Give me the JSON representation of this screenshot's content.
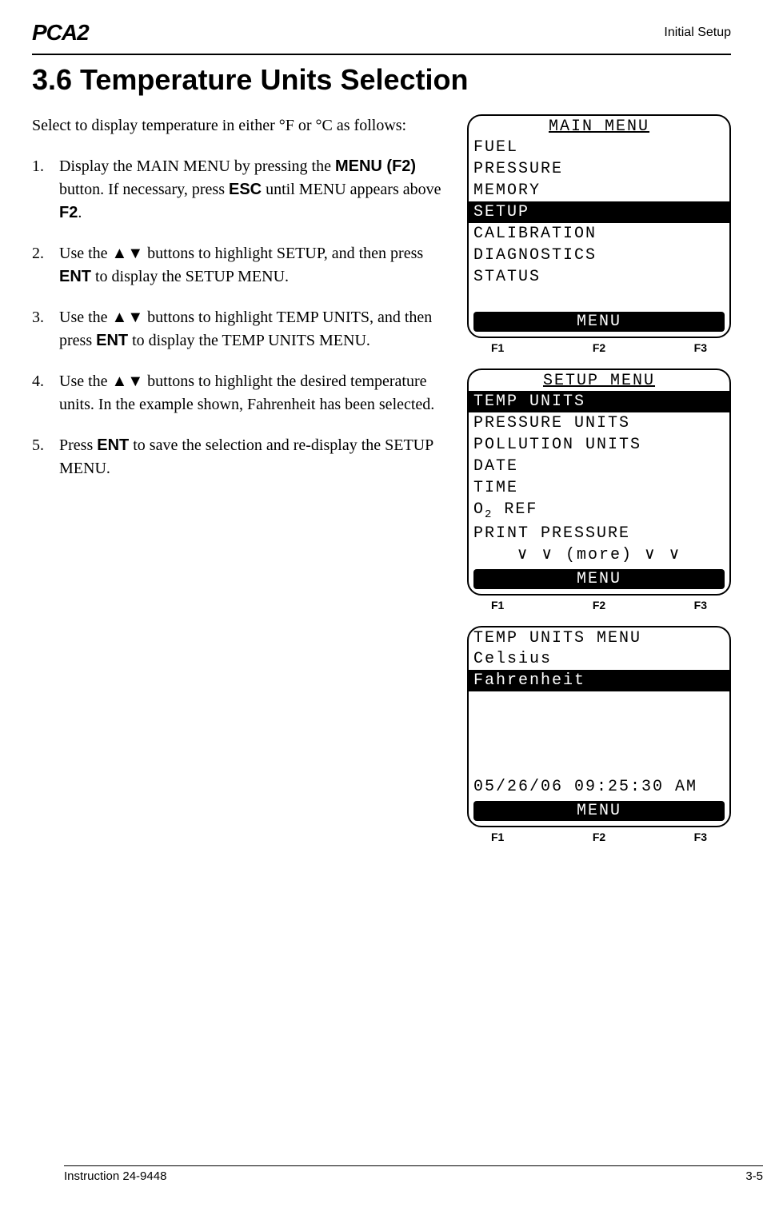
{
  "header": {
    "logo": "PCA2",
    "right": "Initial Setup"
  },
  "title": "3.6  Temperature Units Selection",
  "intro": "Select to display temperature in either °F or °C as follows:",
  "steps": {
    "s1_a": "Display the MAIN MENU by pressing the ",
    "s1_b": "MENU (F2)",
    "s1_c": " button. If necessary, press ",
    "s1_d": "ESC",
    "s1_e": " until MENU appears above ",
    "s1_f": "F2",
    "s1_g": ".",
    "s2_a": "Use the ",
    "s2_b": " buttons to highlight SETUP, and then press ",
    "s2_c": "ENT",
    "s2_d": " to display the SETUP MENU.",
    "s3_a": "Use the ",
    "s3_b": " buttons to highlight TEMP UNITS, and then press ",
    "s3_c": "ENT",
    "s3_d": " to display the TEMP UNITS MENU.",
    "s4_a": "Use the ",
    "s4_b": " buttons to highlight the desired temperature units. In the example shown, Fahrenheit has been selected.",
    "s5_a": "Press ",
    "s5_b": "ENT",
    "s5_c": " to save the selection and re-display the SETUP MENU."
  },
  "screen1": {
    "title": "MAIN MENU",
    "l1": "FUEL",
    "l2": "PRESSURE",
    "l3": "MEMORY",
    "l4": "SETUP",
    "l5": "CALIBRATION",
    "l6": "DIAGNOSTICS",
    "l7": "STATUS",
    "bottom": "MENU"
  },
  "screen2": {
    "title": "SETUP MENU",
    "l1": "TEMP UNITS",
    "l2": "PRESSURE UNITS",
    "l3": "POLLUTION UNITS",
    "l4": "DATE",
    "l5": "TIME",
    "l6a": "O",
    "l6b": "2",
    "l6c": " REF",
    "l7": "PRINT PRESSURE",
    "more": "∨  ∨   (more)   ∨  ∨",
    "bottom": "MENU"
  },
  "screen3": {
    "title": "TEMP UNITS MENU",
    "l1": "Celsius",
    "l2": "Fahrenheit",
    "ts": "05/26/06 09:25:30 AM",
    "bottom": "MENU"
  },
  "fkeys": {
    "f1": "F1",
    "f2": "F2",
    "f3": "F3"
  },
  "footer": {
    "left": "Instruction 24-9448",
    "right": "3-5"
  }
}
